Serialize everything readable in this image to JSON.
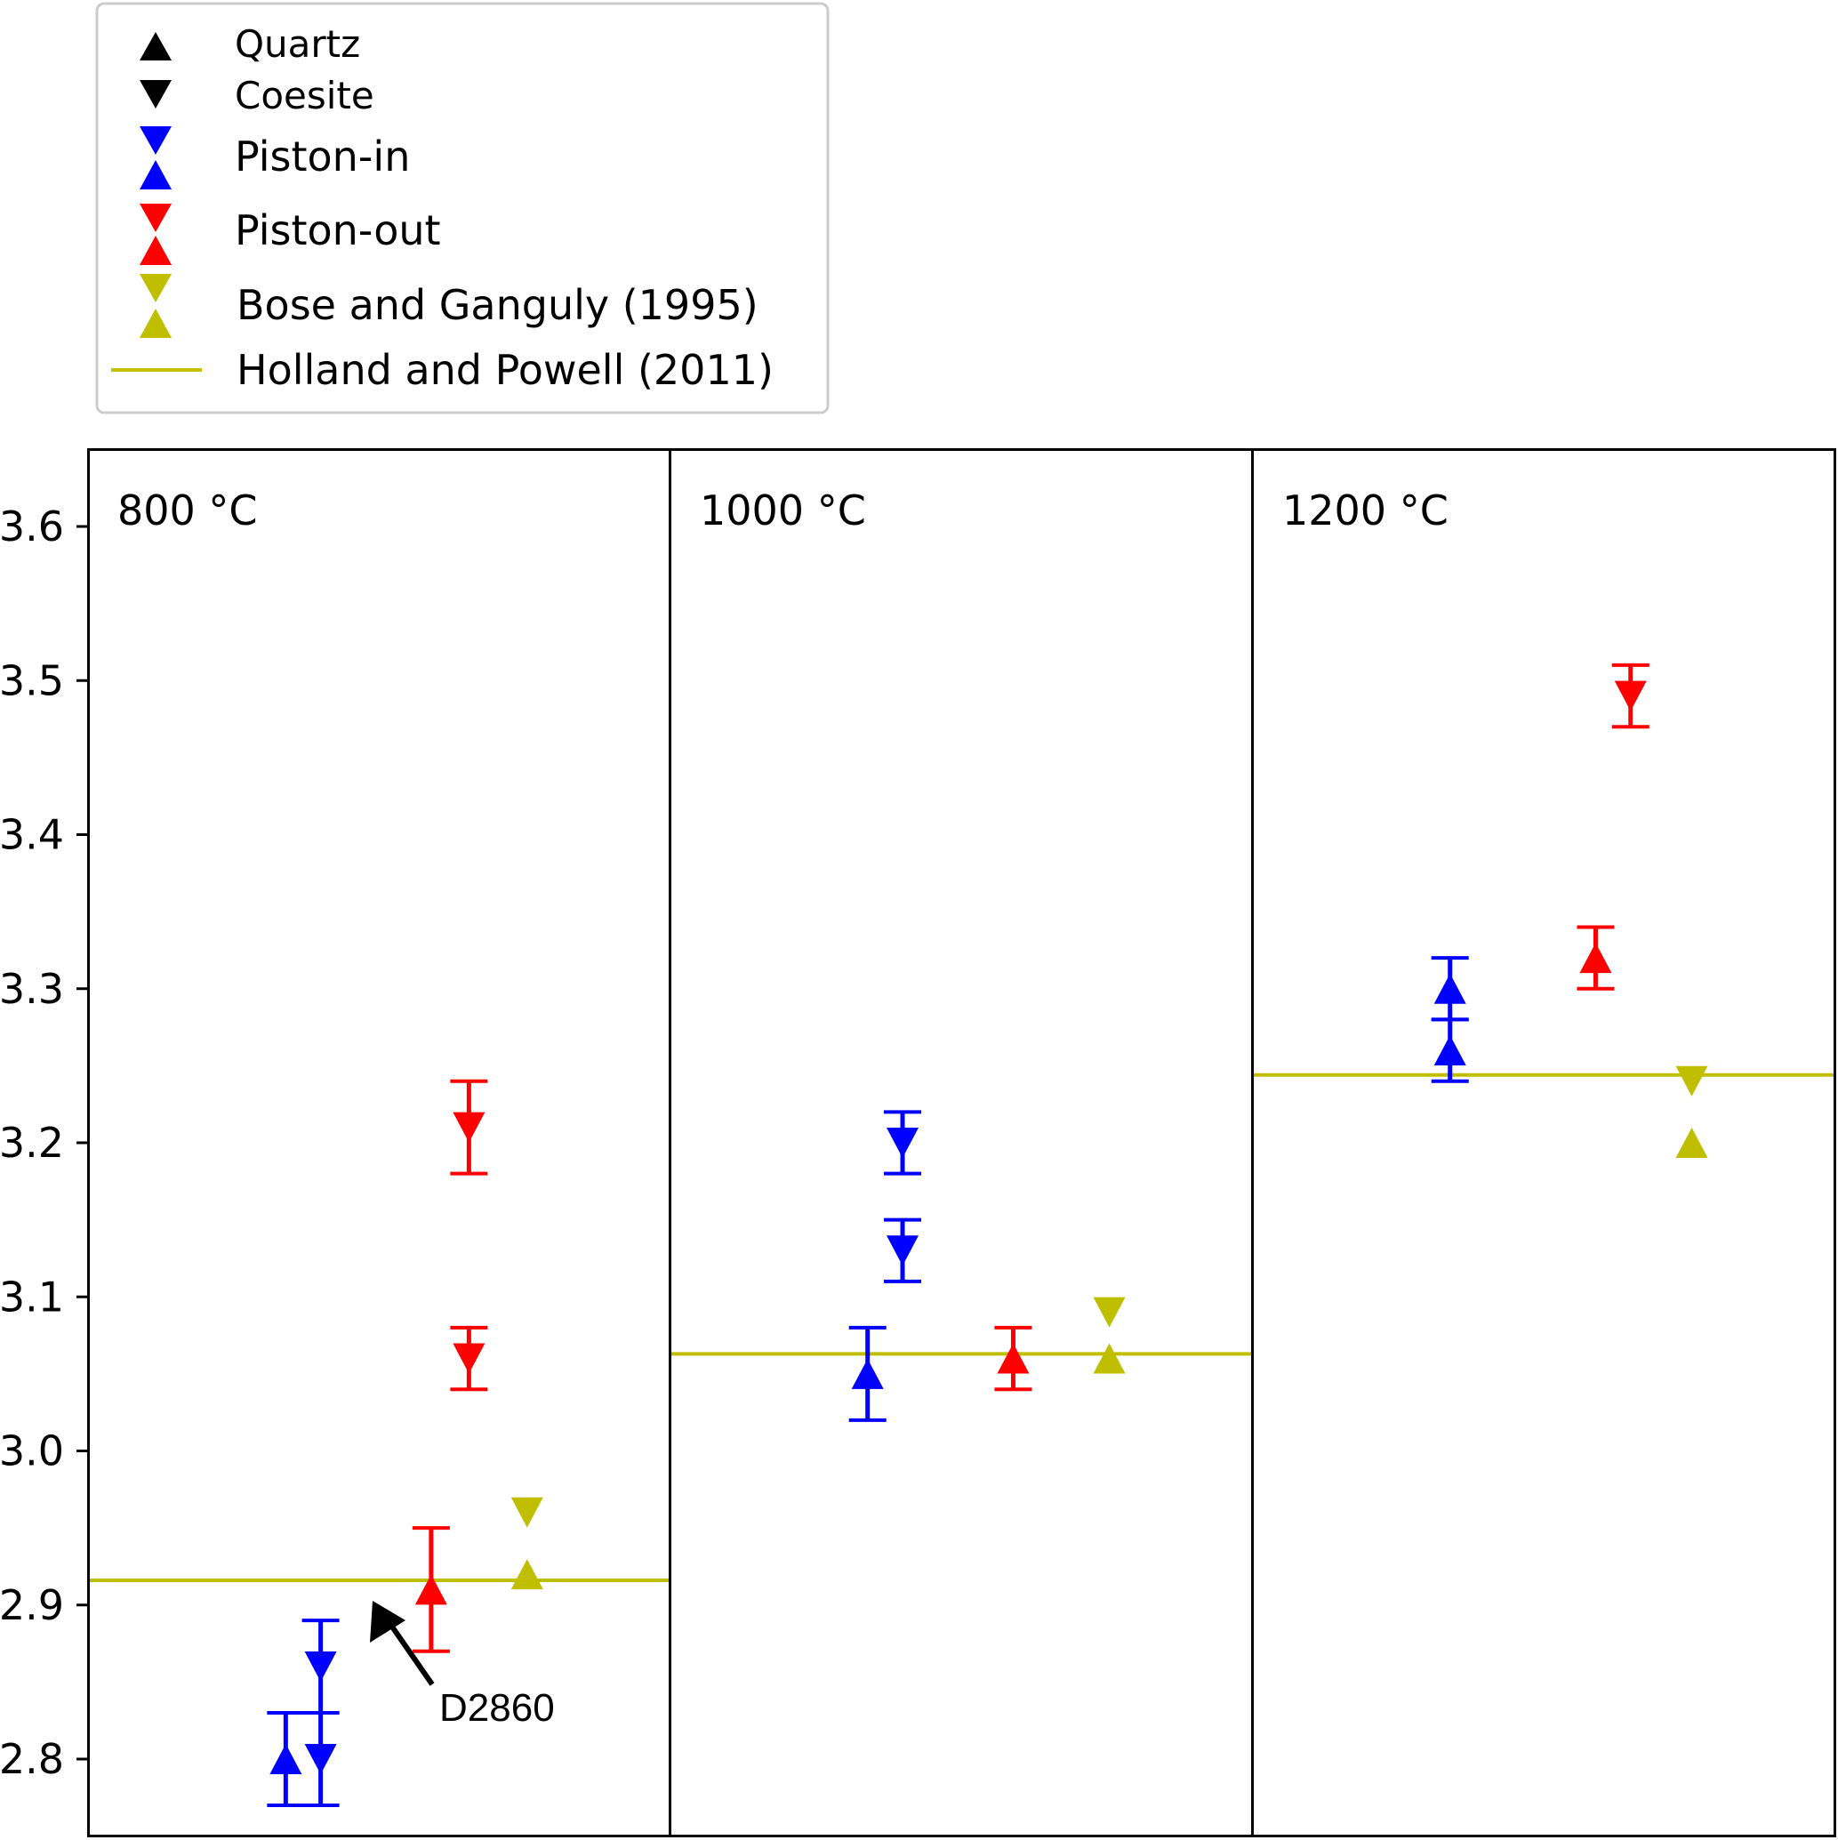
{
  "chart_data": {
    "type": "scatter",
    "title": "",
    "xlabel": "",
    "ylabel": "",
    "ylim": [
      2.75,
      3.65
    ],
    "yticks": [
      "2.8",
      "2.9",
      "3.0",
      "3.1",
      "3.2",
      "3.3",
      "3.4",
      "3.5",
      "3.6"
    ],
    "grid": false,
    "legend_position": "above-left",
    "colors": {
      "piston_in": "#0000ff",
      "piston_out": "#ff0000",
      "bose_ganguly": "#bfbf00",
      "holland_powell": "#bfbf00",
      "legend_marker_neutral": "#000000"
    },
    "legend": {
      "quartz": "Quartz",
      "coesite": "Coesite",
      "piston_in": "Piston-in",
      "piston_out": "Piston-out",
      "bose_ganguly": "Bose and Ganguly (1995)",
      "holland_powell": "Holland and Powell (2011)"
    },
    "panels": [
      {
        "title": "800 °C",
        "holland_powell": 2.916,
        "points": [
          {
            "series": "Piston-in",
            "phase": "Quartz",
            "slot": 0.34,
            "y": 2.8,
            "err": [
              2.77,
              2.83
            ]
          },
          {
            "series": "Piston-in",
            "phase": "Coesite",
            "slot": 0.4,
            "y": 2.8,
            "err": [
              2.77,
              2.83
            ]
          },
          {
            "series": "Piston-in",
            "phase": "Coesite",
            "slot": 0.4,
            "y": 2.86,
            "err": [
              2.83,
              2.89
            ]
          },
          {
            "series": "Piston-out",
            "phase": "Quartz",
            "slot": 0.59,
            "y": 2.91,
            "err": [
              2.87,
              2.95
            ]
          },
          {
            "series": "Piston-out",
            "phase": "Coesite",
            "slot": 0.655,
            "y": 3.21,
            "err": [
              3.18,
              3.24
            ]
          },
          {
            "series": "Piston-out",
            "phase": "Coesite",
            "slot": 0.655,
            "y": 3.06,
            "err": [
              3.04,
              3.08
            ]
          },
          {
            "series": "Bose and Ganguly (1995)",
            "phase": "Coesite",
            "slot": 0.755,
            "y": 2.96
          },
          {
            "series": "Bose and Ganguly (1995)",
            "phase": "Quartz",
            "slot": 0.755,
            "y": 2.92
          }
        ],
        "annotation": {
          "text": "D2860",
          "target_y": 2.91
        }
      },
      {
        "title": "1000 °C",
        "holland_powell": 3.063,
        "points": [
          {
            "series": "Piston-in",
            "phase": "Quartz",
            "slot": 0.34,
            "y": 3.05,
            "err": [
              3.02,
              3.08
            ]
          },
          {
            "series": "Piston-in",
            "phase": "Coesite",
            "slot": 0.4,
            "y": 3.2,
            "err": [
              3.18,
              3.22
            ]
          },
          {
            "series": "Piston-in",
            "phase": "Coesite",
            "slot": 0.4,
            "y": 3.13,
            "err": [
              3.11,
              3.15
            ]
          },
          {
            "series": "Piston-out",
            "phase": "Quartz",
            "slot": 0.59,
            "y": 3.06,
            "err": [
              3.04,
              3.08
            ]
          },
          {
            "series": "Bose and Ganguly (1995)",
            "phase": "Coesite",
            "slot": 0.755,
            "y": 3.09
          },
          {
            "series": "Bose and Ganguly (1995)",
            "phase": "Quartz",
            "slot": 0.755,
            "y": 3.06
          }
        ]
      },
      {
        "title": "1200 °C",
        "holland_powell": 3.244,
        "points": [
          {
            "series": "Piston-in",
            "phase": "Quartz",
            "slot": 0.34,
            "y": 3.3,
            "err": [
              3.28,
              3.32
            ]
          },
          {
            "series": "Piston-in",
            "phase": "Quartz",
            "slot": 0.34,
            "y": 3.26,
            "err": [
              3.24,
              3.28
            ]
          },
          {
            "series": "Piston-out",
            "phase": "Quartz",
            "slot": 0.59,
            "y": 3.32,
            "err": [
              3.3,
              3.34
            ]
          },
          {
            "series": "Piston-out",
            "phase": "Coesite",
            "slot": 0.65,
            "y": 3.49,
            "err": [
              3.47,
              3.51
            ]
          },
          {
            "series": "Bose and Ganguly (1995)",
            "phase": "Coesite",
            "slot": 0.755,
            "y": 3.24
          },
          {
            "series": "Bose and Ganguly (1995)",
            "phase": "Quartz",
            "slot": 0.755,
            "y": 3.2
          }
        ]
      }
    ]
  }
}
